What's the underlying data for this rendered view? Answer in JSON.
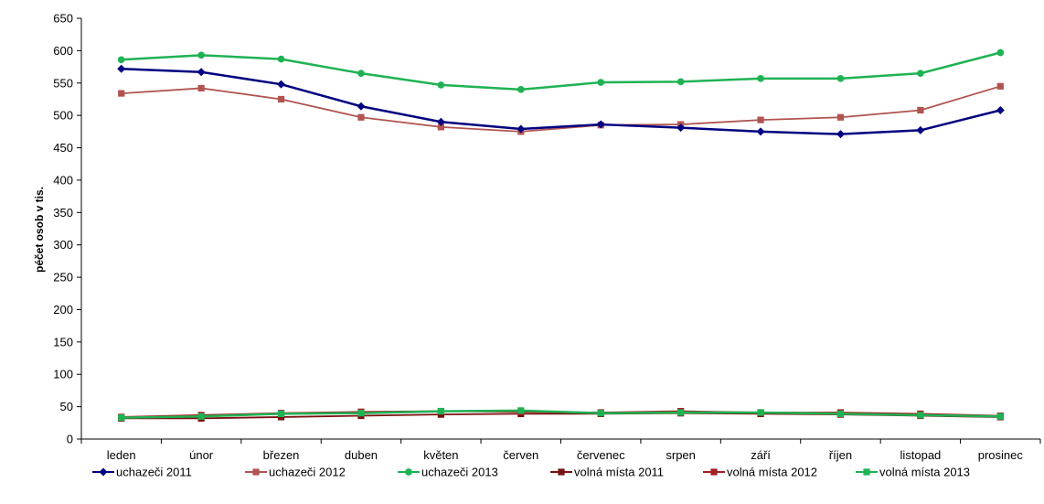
{
  "chart_data": {
    "type": "line",
    "title": "",
    "xlabel": "",
    "ylabel": "péčet osob v tis.",
    "ylim": [
      0,
      650
    ],
    "yticks": [
      0,
      50,
      100,
      150,
      200,
      250,
      300,
      350,
      400,
      450,
      500,
      550,
      600,
      650
    ],
    "grid": false,
    "legend_position": "bottom",
    "categories": [
      "leden",
      "únor",
      "březen",
      "duben",
      "květen",
      "červen",
      "červenec",
      "srpen",
      "září",
      "říjen",
      "listopad",
      "prosinec"
    ],
    "series": [
      {
        "name": "uchazeči 2011",
        "color": "#000080",
        "marker": "diamond",
        "values": [
          572,
          567,
          548,
          514,
          490,
          479,
          486,
          481,
          475,
          471,
          477,
          508
        ]
      },
      {
        "name": "uchazeči 2012",
        "color": "#b05450",
        "marker": "square",
        "values": [
          534,
          542,
          525,
          497,
          482,
          475,
          485,
          486,
          493,
          497,
          508,
          545
        ]
      },
      {
        "name": "uchazeči 2013",
        "color": "#1fb254",
        "marker": "circle",
        "values": [
          586,
          593,
          587,
          565,
          547,
          540,
          551,
          552,
          557,
          557,
          565,
          597
        ]
      },
      {
        "name": "volná místa 2011",
        "color": "#7a1010",
        "marker": "square",
        "values": [
          32,
          32,
          34,
          36,
          38,
          39,
          39,
          40,
          39,
          38,
          36,
          34
        ]
      },
      {
        "name": "volná místa 2012",
        "color": "#a02020",
        "marker": "square",
        "values": [
          34,
          37,
          40,
          42,
          43,
          42,
          41,
          43,
          41,
          41,
          39,
          36
        ]
      },
      {
        "name": "volná místa 2013",
        "color": "#1fb254",
        "marker": "square",
        "values": [
          33,
          35,
          39,
          40,
          43,
          44,
          40,
          41,
          41,
          39,
          37,
          35
        ]
      }
    ]
  }
}
